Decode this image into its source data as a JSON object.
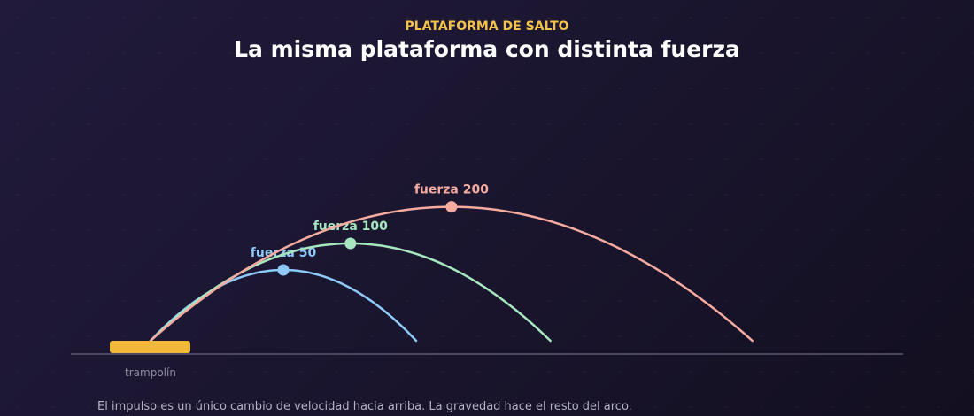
{
  "header": {
    "eyebrow": "PLATAFORMA DE SALTO",
    "title": "La misma plataforma con distinta fuerza"
  },
  "platform": {
    "label": "trampolín",
    "color": "#f0b93c"
  },
  "ground_color": "#5c5872",
  "arcs": [
    {
      "label": "fuerza 50",
      "force": 50,
      "color": "#8ec9f7"
    },
    {
      "label": "fuerza 100",
      "force": 100,
      "color": "#a6e7bf"
    },
    {
      "label": "fuerza 200",
      "force": 200,
      "color": "#f5aba0"
    }
  ],
  "caption": "El impulso es un único cambio de velocidad hacia arriba. La gravedad hace el resto del arco."
}
